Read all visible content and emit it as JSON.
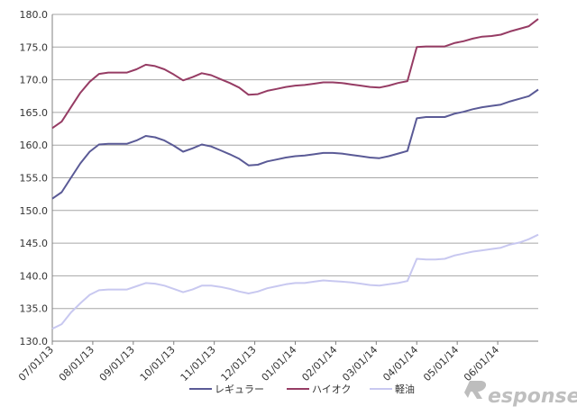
{
  "chart_data": {
    "type": "line",
    "title": "",
    "xlabel": "",
    "ylabel": "",
    "ylim": [
      130,
      180
    ],
    "yticks": [
      "130.0",
      "135.0",
      "140.0",
      "145.0",
      "150.0",
      "155.0",
      "160.0",
      "165.0",
      "170.0",
      "175.0",
      "180.0"
    ],
    "xticks": [
      "07/01/13",
      "08/01/13",
      "09/01/13",
      "10/01/13",
      "11/01/13",
      "12/01/13",
      "01/01/14",
      "02/01/14",
      "03/01/14",
      "04/01/14",
      "05/01/14",
      "06/01/14"
    ],
    "grid": "horizontal",
    "legend_position": "bottom",
    "series": [
      {
        "name": "レギュラー",
        "color": "#5a5a96",
        "values": [
          151.8,
          152.8,
          155.0,
          157.2,
          159.0,
          160.1,
          160.2,
          160.2,
          160.2,
          160.7,
          161.4,
          161.2,
          160.7,
          159.9,
          159.0,
          159.5,
          160.1,
          159.8,
          159.2,
          158.6,
          157.9,
          156.9,
          157.0,
          157.5,
          157.8,
          158.1,
          158.3,
          158.4,
          158.6,
          158.8,
          158.8,
          158.7,
          158.5,
          158.3,
          158.1,
          158.0,
          158.3,
          158.7,
          159.1,
          164.1,
          164.3,
          164.3,
          164.3,
          164.8,
          165.1,
          165.5,
          165.8,
          166.0,
          166.2,
          166.7,
          167.1,
          167.5,
          168.5
        ]
      },
      {
        "name": "ハイオク",
        "color": "#963c64",
        "values": [
          162.6,
          163.6,
          165.8,
          168.0,
          169.7,
          170.9,
          171.1,
          171.1,
          171.1,
          171.6,
          172.3,
          172.1,
          171.6,
          170.8,
          169.9,
          170.4,
          171.0,
          170.7,
          170.1,
          169.5,
          168.8,
          167.7,
          167.8,
          168.3,
          168.6,
          168.9,
          169.1,
          169.2,
          169.4,
          169.6,
          169.6,
          169.5,
          169.3,
          169.1,
          168.9,
          168.8,
          169.1,
          169.5,
          169.8,
          175.0,
          175.1,
          175.1,
          175.1,
          175.6,
          175.9,
          176.3,
          176.6,
          176.7,
          176.9,
          177.4,
          177.8,
          178.2,
          179.3
        ]
      },
      {
        "name": "軽油",
        "color": "#c8c8f0",
        "values": [
          131.9,
          132.6,
          134.4,
          135.8,
          137.1,
          137.8,
          137.9,
          137.9,
          137.9,
          138.4,
          138.9,
          138.8,
          138.5,
          138.0,
          137.5,
          137.9,
          138.5,
          138.5,
          138.3,
          138.0,
          137.6,
          137.3,
          137.6,
          138.1,
          138.4,
          138.7,
          138.9,
          138.9,
          139.1,
          139.3,
          139.2,
          139.1,
          139.0,
          138.8,
          138.6,
          138.5,
          138.7,
          138.9,
          139.2,
          142.6,
          142.5,
          142.5,
          142.6,
          143.1,
          143.4,
          143.7,
          143.9,
          144.1,
          144.3,
          144.8,
          145.1,
          145.6,
          146.3
        ]
      }
    ]
  },
  "watermark": {
    "text": "esponse.",
    "color": "#bfbfbf"
  }
}
